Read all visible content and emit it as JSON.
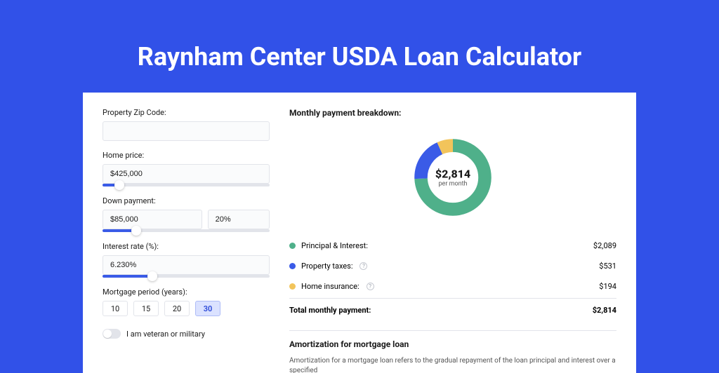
{
  "page": {
    "title": "Raynham Center USDA Loan Calculator",
    "background_color": "#3151e8"
  },
  "form": {
    "zip": {
      "label": "Property Zip Code:",
      "value": ""
    },
    "home_price": {
      "label": "Home price:",
      "value": "$425,000",
      "slider_pct": 10
    },
    "down_payment": {
      "label": "Down payment:",
      "value": "$85,000",
      "pct_value": "20%",
      "slider_pct": 20
    },
    "interest_rate": {
      "label": "Interest rate (%):",
      "value": "6.230%",
      "slider_pct": 30
    },
    "mortgage_period": {
      "label": "Mortgage period (years):",
      "options": [
        "10",
        "15",
        "20",
        "30"
      ],
      "selected_index": 3
    },
    "veteran": {
      "label": "I am veteran or military",
      "checked": false
    }
  },
  "breakdown": {
    "heading": "Monthly payment breakdown:",
    "total_display": "$2,814",
    "total_sub": "per month",
    "chart": {
      "type": "donut",
      "segments": [
        {
          "label": "Principal & Interest:",
          "amount": "$2,089",
          "value": 2089,
          "color": "#4fb08a"
        },
        {
          "label": "Property taxes:",
          "amount": "$531",
          "value": 531,
          "color": "#3a5be7",
          "help": true
        },
        {
          "label": "Home insurance:",
          "amount": "$194",
          "value": 194,
          "color": "#f2c45b",
          "help": true
        }
      ],
      "thickness": 18,
      "background_color": "#ffffff"
    },
    "total_row": {
      "label": "Total monthly payment:",
      "amount": "$2,814"
    }
  },
  "amortization": {
    "heading": "Amortization for mortgage loan",
    "desc": "Amortization for a mortgage loan refers to the gradual repayment of the loan principal and interest over a specified"
  },
  "colors": {
    "input_border": "#e2e4ea",
    "slider_track": "#e2e4ea",
    "slider_fill": "#3a5be7",
    "text": "#1a1a1a"
  }
}
